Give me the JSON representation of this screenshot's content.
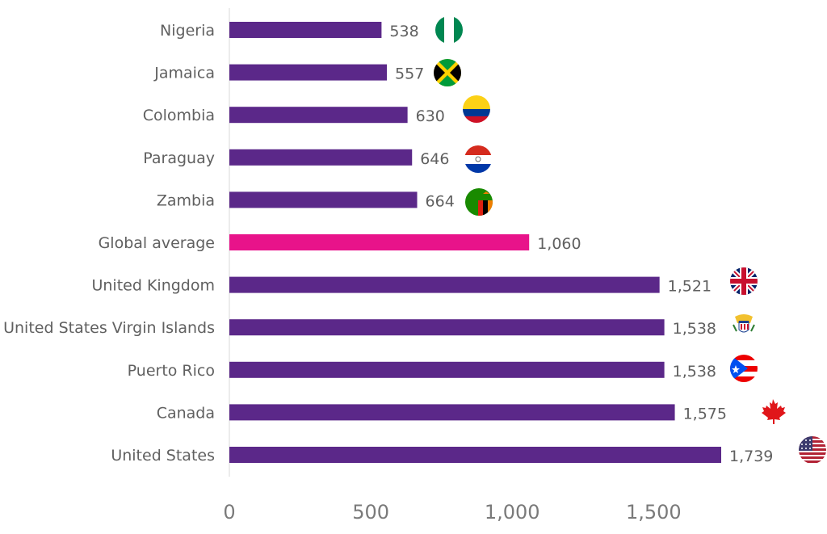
{
  "chart_data": {
    "type": "bar",
    "orientation": "horizontal",
    "categories": [
      "Nigeria",
      "Jamaica",
      "Colombia",
      "Paraguay",
      "Zambia",
      "Global average",
      "United Kingdom",
      "United States Virgin Islands",
      "Puerto Rico",
      "Canada",
      "United States"
    ],
    "values": [
      538,
      557,
      630,
      646,
      664,
      1060,
      1521,
      1538,
      1538,
      1575,
      1739
    ],
    "value_labels": [
      "538",
      "557",
      "630",
      "646",
      "664",
      "1,060",
      "1,521",
      "1,538",
      "1,538",
      "1,575",
      "1,739"
    ],
    "highlight_index": 5,
    "xlim": [
      0,
      2000
    ],
    "xticks": [
      0,
      500,
      1000,
      1500
    ],
    "xtick_labels": [
      "0",
      "500",
      "1,000",
      "1,500"
    ],
    "flags": [
      "nigeria-flag",
      "jamaica-flag",
      "colombia-flag",
      "paraguay-flag",
      "zambia-flag",
      null,
      "uk-flag",
      "usvi-flag",
      "puerto-rico-flag",
      "canada-flag",
      "usa-flag"
    ],
    "grid": false,
    "legend": "none"
  },
  "colors": {
    "bar": "#5b2889",
    "highlight": "#e8138a",
    "text": "#606060",
    "axis": "#d9d9d9"
  }
}
